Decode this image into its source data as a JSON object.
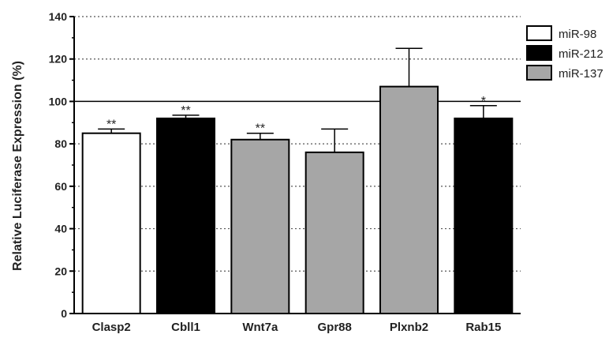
{
  "chart_data": {
    "type": "bar",
    "title": "",
    "xlabel": "",
    "ylabel": "Relative Luciferase Expression (%)",
    "ylim": [
      0,
      140
    ],
    "yticks": [
      0,
      20,
      40,
      60,
      80,
      100,
      120,
      140
    ],
    "grid": "dotted horizontal",
    "reference_line": 100,
    "legend_position": "top-right",
    "legend": [
      {
        "name": "miR-98",
        "color": "#ffffff"
      },
      {
        "name": "miR-212",
        "color": "#000000"
      },
      {
        "name": "miR-137",
        "color": "#a6a6a6"
      }
    ],
    "bars": [
      {
        "category": "Clasp2",
        "value": 85,
        "error": 2,
        "group": "miR-98",
        "color": "#ffffff",
        "significance": "**"
      },
      {
        "category": "Cbll1",
        "value": 92,
        "error": 1.5,
        "group": "miR-212",
        "color": "#000000",
        "significance": "**"
      },
      {
        "category": "Wnt7a",
        "value": 82,
        "error": 3,
        "group": "miR-137",
        "color": "#a6a6a6",
        "significance": "**"
      },
      {
        "category": "Gpr88",
        "value": 76,
        "error": 11,
        "group": "miR-137",
        "color": "#a6a6a6",
        "significance": ""
      },
      {
        "category": "Plxnb2",
        "value": 107,
        "error": 18,
        "group": "miR-137",
        "color": "#a6a6a6",
        "significance": ""
      },
      {
        "category": "Rab15",
        "value": 92,
        "error": 6,
        "group": "miR-212",
        "color": "#000000",
        "significance": "*"
      }
    ]
  }
}
